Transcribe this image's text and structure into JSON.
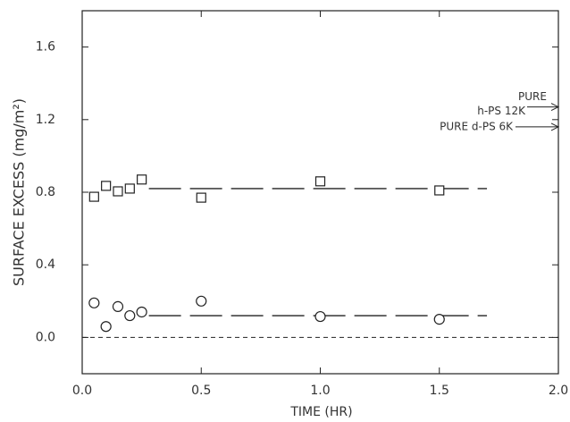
{
  "chart_data": {
    "type": "scatter",
    "x_label": "TIME (HR)",
    "y_label": "SURFACE EXCESS (mg/m²)",
    "x": [
      0.05,
      0.1,
      0.15,
      0.2,
      0.25,
      0.5,
      1.0,
      1.5
    ],
    "series": [
      {
        "marker": "square",
        "color": "#222222",
        "values": [
          0.775,
          0.835,
          0.805,
          0.82,
          0.87,
          0.77,
          0.86,
          0.81
        ]
      },
      {
        "marker": "circle",
        "color": "#222222",
        "values": [
          0.19,
          0.06,
          0.17,
          0.12,
          0.14,
          0.2,
          0.115,
          0.1
        ]
      }
    ],
    "fit_lines": [
      {
        "y": 0.82,
        "x": [
          0.28,
          1.7
        ]
      },
      {
        "y": 0.12,
        "x": [
          0.28,
          1.7
        ]
      }
    ],
    "annotations": [
      {
        "lines": [
          "PURE",
          "h-PS 12K"
        ],
        "y": 1.27
      },
      {
        "lines": [
          "PURE d-PS 6K"
        ],
        "y": 1.16
      }
    ],
    "xlim": [
      0,
      2
    ],
    "ylim": [
      -0.2,
      1.8
    ],
    "xticks": [
      {
        "value": 0,
        "label": "0.0"
      },
      0.5,
      {
        "value": 1,
        "label": "1.0"
      },
      1.5,
      {
        "value": 2,
        "label": "2.0"
      }
    ],
    "yticks": [
      {
        "value": 0,
        "label": "0.0"
      },
      0.4,
      0.8,
      1.2,
      1.6
    ]
  }
}
